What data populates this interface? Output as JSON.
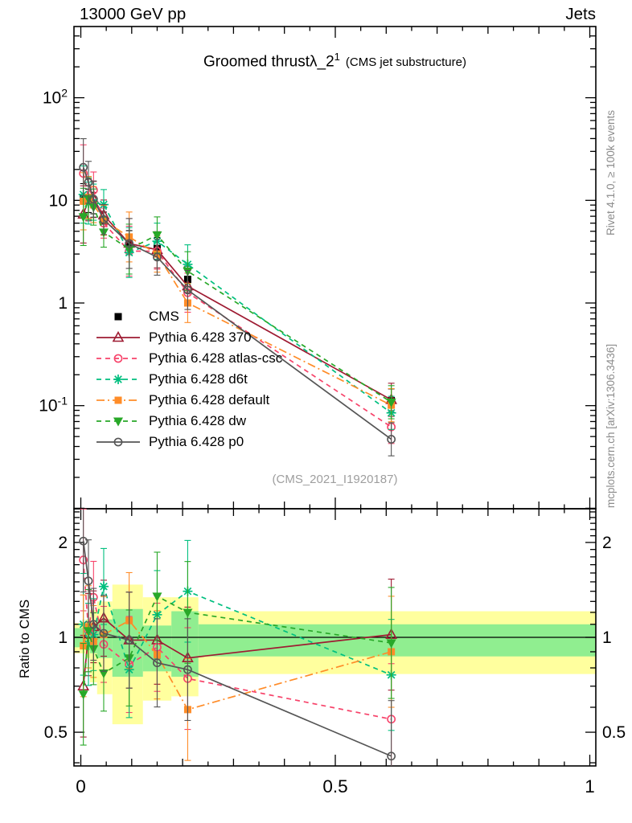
{
  "header": {
    "left": "13000 GeV pp",
    "right": "Jets"
  },
  "title": {
    "main": "Groomed thrust",
    "lambda": "λ_2",
    "sup": "1",
    "paren": "(CMS jet substructure)"
  },
  "watermark": "(CMS_2021_I1920187)",
  "side_notes": {
    "top": "Rivet 4.1.0, ≥ 100k events",
    "bottom": "mcplots.cern.ch [arXiv:1306.3436]"
  },
  "labels": {
    "ratio_ylabel": "Ratio to CMS"
  },
  "colors": {
    "band_yellow": "#ffff9e",
    "band_green": "#90ee90",
    "frame": "#000000",
    "watermark_gray": "#9e9e9e",
    "side_note_gray": "#8c8c8c"
  },
  "chart_data": {
    "type": "line",
    "title": "Groomed thrustλ_2^1 (CMS jet substructure)",
    "xlabel": "",
    "ylabel": "",
    "ratio_ylabel": "Ratio to CMS",
    "grid": false,
    "legend_position": "upper-left-inside",
    "x": [
      0.005,
      0.015,
      0.025,
      0.045,
      0.095,
      0.15,
      0.21,
      0.61
    ],
    "axes": {
      "x": {
        "min": -0.0134,
        "max": 1.012,
        "labeled_ticks": [
          0,
          0.5,
          1
        ],
        "medium_step": 0.1,
        "minor_step": 0.05
      },
      "y_main": {
        "log": true,
        "min": 0.01,
        "max": 490,
        "labels": [
          {
            "v": 100,
            "base": "10",
            "exp": "2"
          },
          {
            "v": 10,
            "base": "10",
            "exp": ""
          },
          {
            "v": 1,
            "base": "1",
            "exp": ""
          },
          {
            "v": 0.1,
            "base": "10",
            "exp": "-1"
          }
        ]
      },
      "y_ratio": {
        "log": true,
        "min": 0.39,
        "max": 2.56,
        "labels": [
          {
            "v": 2,
            "t": "2"
          },
          {
            "v": 1,
            "t": "1"
          },
          {
            "v": 0.5,
            "t": "0.5"
          }
        ]
      }
    },
    "series": [
      {
        "id": "cms",
        "label": "CMS",
        "color": "#000000",
        "marker": "square",
        "filled": true,
        "line": "none",
        "y": [
          10.4,
          9.9,
          9.4,
          6.3,
          3.9,
          3.4,
          1.7,
          0.112
        ],
        "ratio": null
      },
      {
        "id": "p370",
        "label": "Pythia 6.428 370",
        "color": "#9e1b32",
        "marker": "triangle-up",
        "filled": false,
        "line": "solid",
        "y": [
          7.3,
          10.1,
          10.2,
          7.2,
          3.8,
          3.3,
          1.46,
          0.114
        ],
        "ratio": [
          0.7,
          1.02,
          1.08,
          1.15,
          0.98,
          0.98,
          0.86,
          1.02
        ]
      },
      {
        "id": "atlas-csc",
        "label": "Pythia 6.428 atlas-csc",
        "color": "#f7436a",
        "marker": "circle",
        "filled": false,
        "line": "dashed",
        "y": [
          18.3,
          10.4,
          12.6,
          6.0,
          3.2,
          3.2,
          1.26,
          0.062
        ],
        "ratio": [
          1.76,
          1.05,
          1.34,
          0.95,
          0.82,
          0.93,
          0.74,
          0.55
        ]
      },
      {
        "id": "d6t",
        "label": "Pythia 6.428 d6t",
        "color": "#00bf7f",
        "marker": "star",
        "filled": true,
        "line": "dashed",
        "y": [
          11.4,
          9.4,
          9.6,
          9.1,
          3.1,
          4.0,
          2.38,
          0.085
        ],
        "ratio": [
          1.1,
          0.95,
          1.02,
          1.45,
          0.79,
          1.18,
          1.4,
          0.76
        ]
      },
      {
        "id": "default",
        "label": "Pythia 6.428 default",
        "color": "#ff8c28",
        "marker": "square",
        "filled": true,
        "line": "dashdot",
        "y": [
          9.8,
          10.7,
          9.1,
          6.4,
          4.4,
          3.0,
          1.0,
          0.101
        ],
        "ratio": [
          0.94,
          1.08,
          0.97,
          1.02,
          1.13,
          0.88,
          0.59,
          0.9
        ]
      },
      {
        "id": "dw",
        "label": "Pythia 6.428 dw",
        "color": "#28a828",
        "marker": "triangle-down",
        "filled": true,
        "line": "dashed",
        "y": [
          6.9,
          10.4,
          8.6,
          4.9,
          3.35,
          4.6,
          2.04,
          0.108
        ],
        "ratio": [
          0.66,
          1.05,
          0.92,
          0.77,
          0.86,
          1.35,
          1.2,
          0.96
        ]
      },
      {
        "id": "p0",
        "label": "Pythia 6.428 p0",
        "color": "#555555",
        "marker": "circle",
        "filled": false,
        "line": "solid",
        "y": [
          21.0,
          15.0,
          10.3,
          6.5,
          3.8,
          2.8,
          1.34,
          0.047
        ],
        "ratio": [
          2.02,
          1.51,
          1.1,
          1.03,
          0.98,
          0.83,
          0.79,
          0.42
        ]
      }
    ],
    "err": {
      "main": [
        1.9,
        1.6,
        1.5,
        1.4,
        1.75,
        1.5,
        1.55,
        1.45
      ],
      "main_cms": [
        1.4,
        1.3,
        1.27,
        1.22,
        1.3,
        1.28,
        1.35,
        1.3
      ],
      "ratio": [
        1.45,
        1.35,
        1.3,
        1.32,
        1.42,
        1.38,
        1.45,
        1.5
      ]
    },
    "ratio_bands": [
      {
        "x0": -0.0134,
        "x1": 0.009,
        "yellow": [
          0.89,
          1.11
        ],
        "green": [
          0.93,
          1.07
        ]
      },
      {
        "x0": 0.009,
        "x1": 0.018,
        "yellow": [
          0.86,
          1.14
        ],
        "green": [
          0.91,
          1.09
        ]
      },
      {
        "x0": 0.018,
        "x1": 0.032,
        "yellow": [
          0.72,
          1.22
        ],
        "green": [
          0.89,
          1.11
        ]
      },
      {
        "x0": 0.032,
        "x1": 0.062,
        "yellow": [
          0.66,
          1.3
        ],
        "green": [
          0.86,
          1.14
        ]
      },
      {
        "x0": 0.062,
        "x1": 0.122,
        "yellow": [
          0.53,
          1.47
        ],
        "green": [
          0.75,
          1.23
        ]
      },
      {
        "x0": 0.122,
        "x1": 0.178,
        "yellow": [
          0.63,
          1.34
        ],
        "green": [
          0.78,
          1.09
        ]
      },
      {
        "x0": 0.178,
        "x1": 0.231,
        "yellow": [
          0.65,
          1.34
        ],
        "green": [
          0.75,
          1.21
        ]
      },
      {
        "x0": 0.231,
        "x1": 1.012,
        "yellow": [
          0.765,
          1.21
        ],
        "green": [
          0.87,
          1.1
        ]
      }
    ]
  }
}
